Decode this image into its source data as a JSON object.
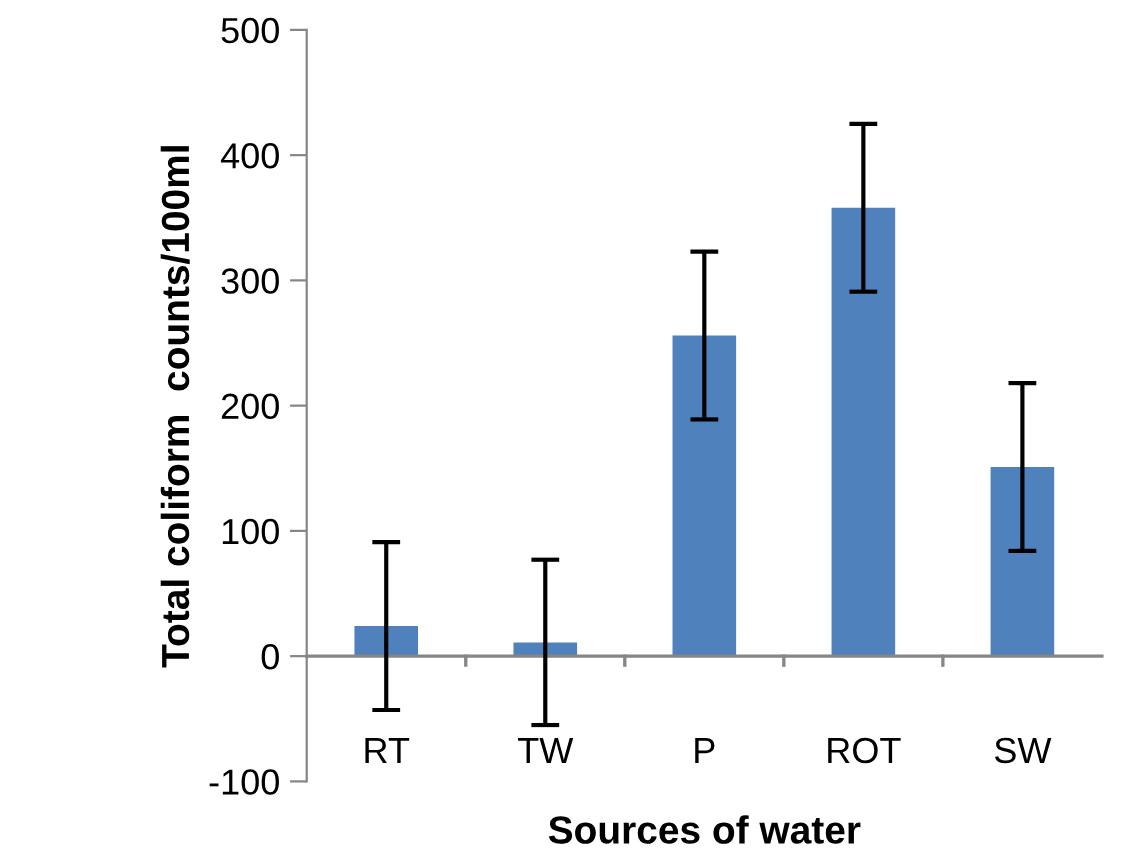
{
  "chart_data": {
    "type": "bar",
    "xlabel": "Sources of water",
    "ylabel": "Total coliform  counts/100ml",
    "categories": [
      "RT",
      "TW",
      "P",
      "ROT",
      "SW"
    ],
    "values": [
      24,
      11,
      256,
      358,
      151
    ],
    "errors": [
      67,
      66,
      67,
      67,
      67
    ],
    "color": "#4f81bd",
    "ylim": [
      -100,
      500
    ],
    "yticks": [
      -100,
      0,
      100,
      200,
      300,
      400,
      500
    ],
    "grid": false
  }
}
